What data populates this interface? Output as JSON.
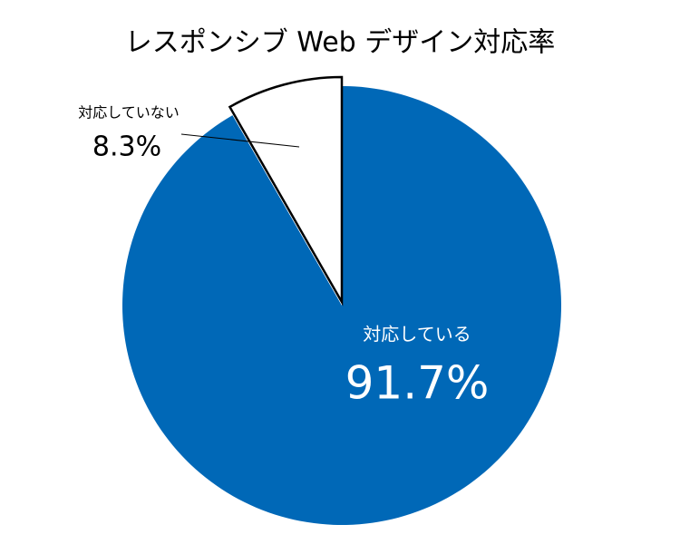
{
  "chart_data": {
    "type": "pie",
    "title": "レスポンシブ Web デザイン対応率",
    "categories": [
      "対応している",
      "対応していない"
    ],
    "values": [
      91.7,
      8.3
    ],
    "value_labels": [
      "91.7%",
      "8.3%"
    ],
    "colors": [
      "#0068b7",
      "#ffffff"
    ]
  }
}
